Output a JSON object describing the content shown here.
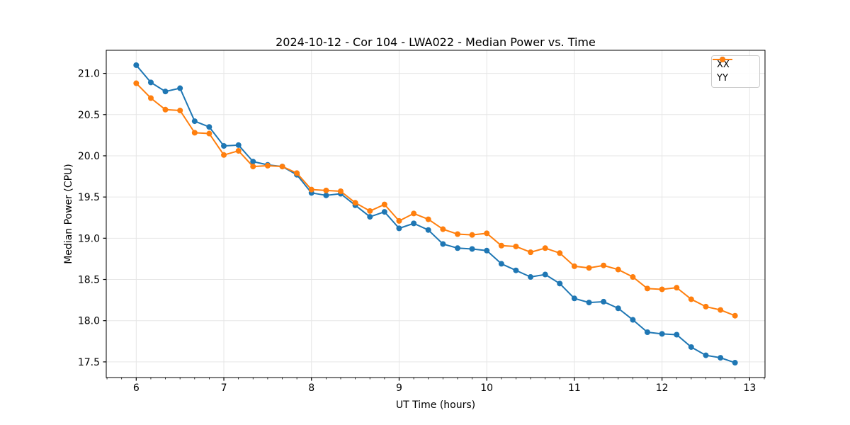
{
  "chart_data": {
    "type": "line",
    "title": "2024-10-12 - Cor 104 - LWA022 - Median Power vs. Time",
    "xlabel": "UT Time (hours)",
    "ylabel": "Median Power (CPU)",
    "xlim": [
      5.658,
      13.175
    ],
    "ylim": [
      17.31,
      21.28
    ],
    "x_ticks": [
      6,
      7,
      8,
      9,
      10,
      11,
      12,
      13
    ],
    "y_ticks": [
      17.5,
      18.0,
      18.5,
      19.0,
      19.5,
      20.0,
      20.5,
      21.0
    ],
    "x_minor_tick_step": 0.1666667,
    "grid": true,
    "legend_position": "upper right",
    "background": "#ffffff",
    "grid_color": "#e6e6e6",
    "spine_color": "#000000",
    "x": [
      6.0,
      6.167,
      6.333,
      6.5,
      6.667,
      6.833,
      7.0,
      7.167,
      7.333,
      7.5,
      7.667,
      7.833,
      8.0,
      8.167,
      8.333,
      8.5,
      8.667,
      8.833,
      9.0,
      9.167,
      9.333,
      9.5,
      9.667,
      9.833,
      10.0,
      10.167,
      10.333,
      10.5,
      10.667,
      10.833,
      11.0,
      11.167,
      11.333,
      11.5,
      11.667,
      11.833,
      12.0,
      12.167,
      12.333,
      12.5,
      12.667,
      12.833
    ],
    "series": [
      {
        "name": "XX",
        "color": "#1f77b4",
        "values": [
          21.1,
          20.89,
          20.78,
          20.82,
          20.42,
          20.35,
          20.12,
          20.13,
          19.93,
          19.89,
          19.87,
          19.77,
          19.55,
          19.52,
          19.54,
          19.4,
          19.26,
          19.32,
          19.12,
          19.18,
          19.1,
          18.93,
          18.88,
          18.87,
          18.85,
          18.69,
          18.61,
          18.53,
          18.56,
          18.45,
          18.27,
          18.22,
          18.23,
          18.15,
          18.01,
          17.86,
          17.84,
          17.83,
          17.68,
          17.58,
          17.55,
          17.49
        ]
      },
      {
        "name": "YY",
        "color": "#ff7f0e",
        "values": [
          20.88,
          20.7,
          20.56,
          20.55,
          20.28,
          20.27,
          20.01,
          20.06,
          19.87,
          19.88,
          19.87,
          19.79,
          19.59,
          19.58,
          19.57,
          19.43,
          19.33,
          19.41,
          19.21,
          19.3,
          19.23,
          19.11,
          19.05,
          19.04,
          19.06,
          18.91,
          18.9,
          18.83,
          18.88,
          18.82,
          18.66,
          18.64,
          18.67,
          18.62,
          18.53,
          18.39,
          18.38,
          18.4,
          18.26,
          18.17,
          18.13,
          18.06
        ]
      }
    ]
  }
}
